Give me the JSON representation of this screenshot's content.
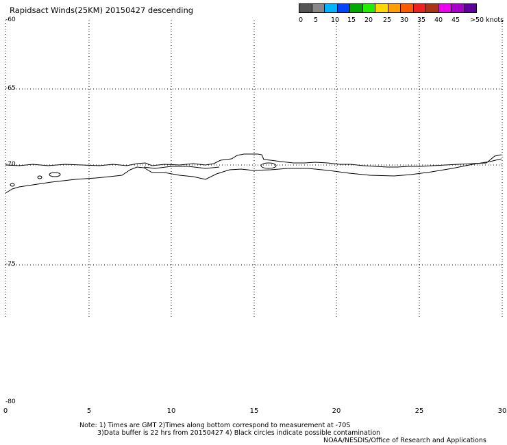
{
  "title": "Rapidsact Winds(25KM) 20150427 descending",
  "legend": {
    "colors": [
      "#555555",
      "#888888",
      "#00b4ff",
      "#0044ff",
      "#00aa00",
      "#22ee00",
      "#ffd800",
      "#ffa000",
      "#ff5a00",
      "#ee2020",
      "#aa3318",
      "#ee00ee",
      "#a800cc",
      "#5e0099"
    ],
    "labels": [
      "0",
      "5",
      "10",
      "15",
      "20",
      "25",
      "30",
      "35",
      "40",
      "45",
      ">50 knots"
    ]
  },
  "latitudes": [
    "-60",
    "-65",
    "-70",
    "-75",
    "-80"
  ],
  "longitudes": [
    "0",
    "5",
    "10",
    "15",
    "20",
    "25",
    "30"
  ],
  "notes": {
    "line1": "Note: 1) Times are GMT 2)Times along bottom correspond to measurement at -70S",
    "line2": "3)Data buffer is 22 hrs from 20150427 4) Black circles indicate possible contamination",
    "line3": "NOAA/NESDIS/Office of Research and Applications"
  }
}
